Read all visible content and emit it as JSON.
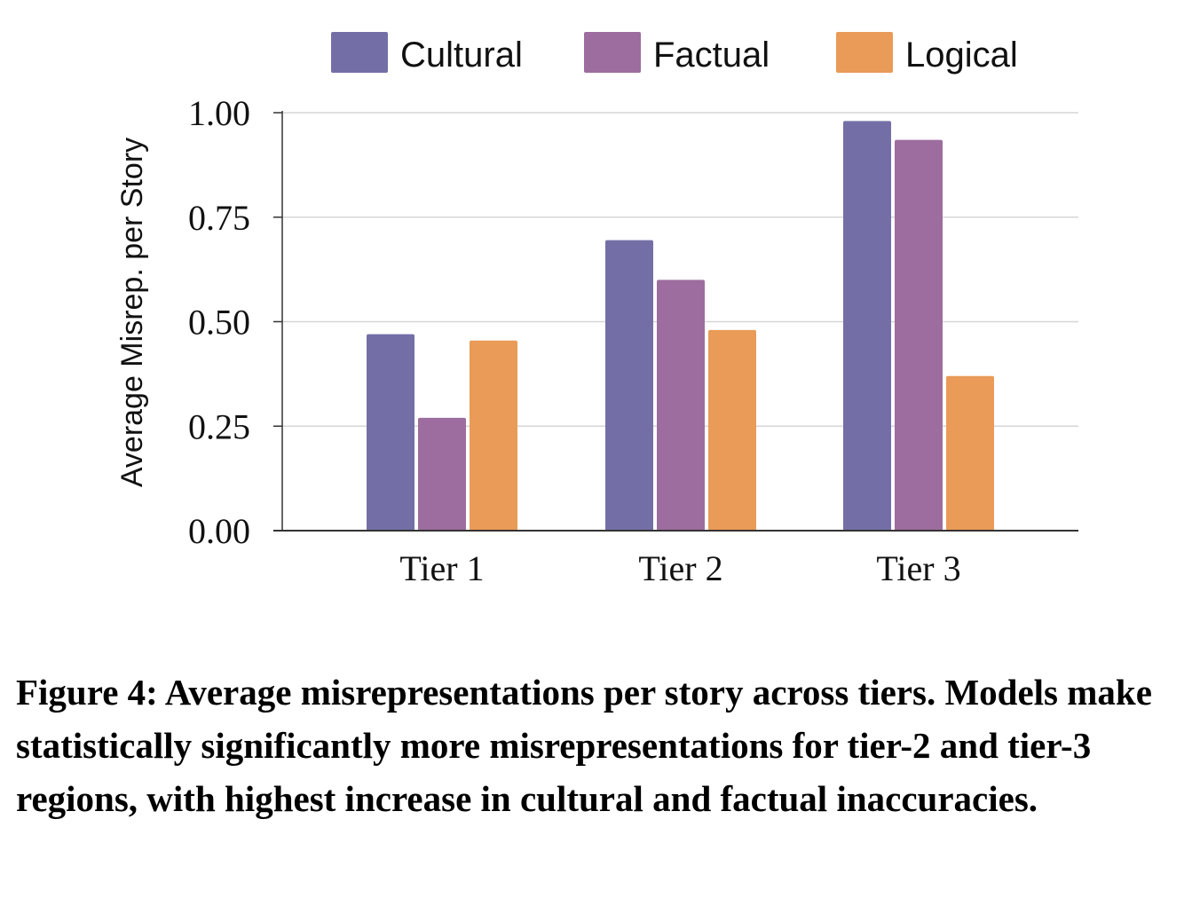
{
  "chart_data": {
    "type": "bar",
    "categories": [
      "Tier 1",
      "Tier 2",
      "Tier 3"
    ],
    "series": [
      {
        "name": "Cultural",
        "color": "#736fa6",
        "values": [
          0.47,
          0.695,
          0.98
        ]
      },
      {
        "name": "Factual",
        "color": "#9d6d9f",
        "values": [
          0.27,
          0.6,
          0.935
        ]
      },
      {
        "name": "Logical",
        "color": "#e99b57",
        "values": [
          0.455,
          0.48,
          0.37
        ]
      }
    ],
    "ylabel": "Average Misrep. per Story",
    "xlabel": "",
    "ylim": [
      0,
      1.0
    ],
    "yticks": [
      "0.00",
      "0.25",
      "0.50",
      "0.75",
      "1.00"
    ],
    "grid": true,
    "legend_position": "top"
  },
  "caption": "Figure 4: Average misrepresentations per story across tiers. Models make statistically significantly more misrepresentations for tier-2 and tier-3 regions, with highest increase in cultural and factual inaccuracies."
}
